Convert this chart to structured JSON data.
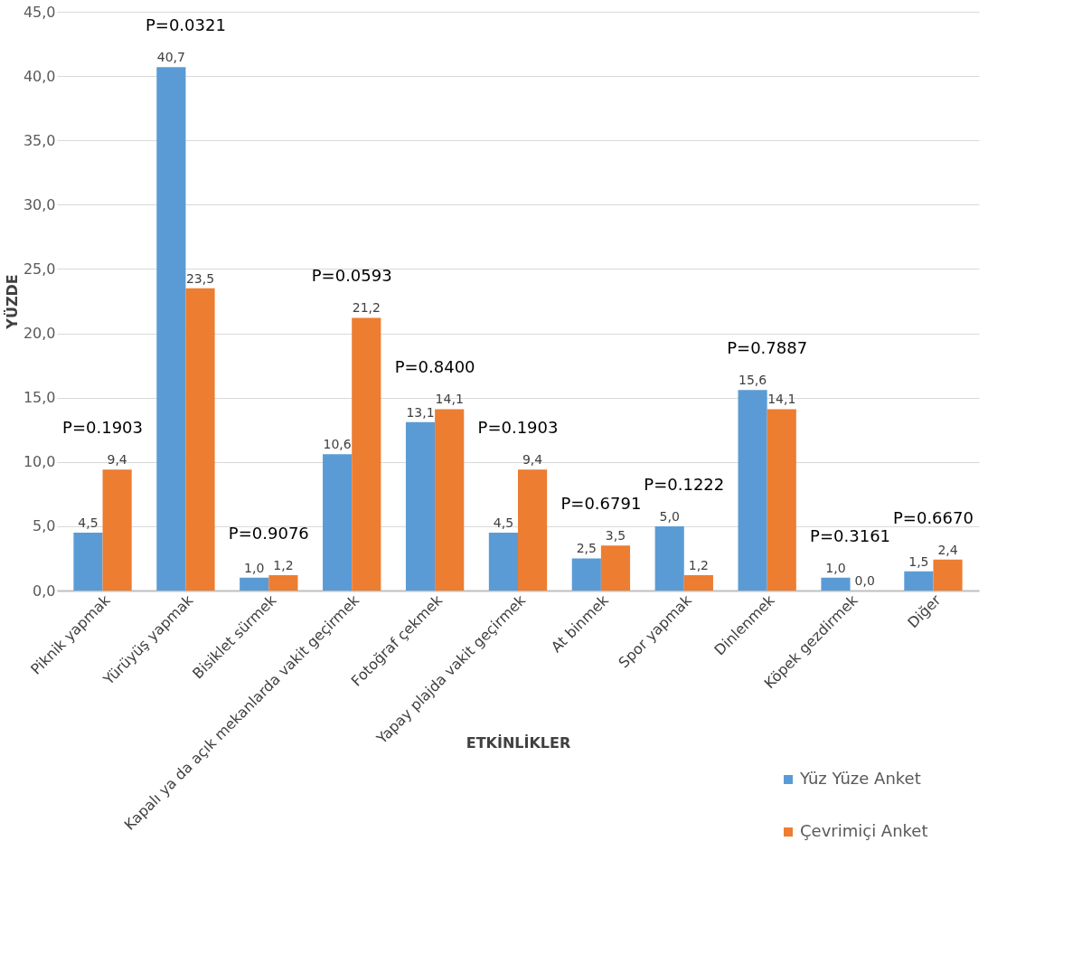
{
  "chart_data": {
    "type": "bar",
    "xlabel": "ETKİNLİKLER",
    "ylabel": "YÜZDE",
    "categories": [
      "Piknik yapmak",
      "Yürüyüş yapmak",
      "Bisiklet sürmek",
      "Kapalı ya da açık mekanlarda vakit geçirmek",
      "Fotoğraf çekmek",
      "Yapay plajda vakit geçirmek",
      "At binmek",
      "Spor yapmak",
      "Dinlenmek",
      "Köpek gezdirmek",
      "Diğer"
    ],
    "series": [
      {
        "name": "Yüz Yüze Anket",
        "color": "#5b9bd5",
        "values": [
          4.5,
          40.7,
          1.0,
          10.6,
          13.1,
          4.5,
          2.5,
          5.0,
          15.6,
          1.0,
          1.5
        ],
        "value_labels": [
          "4,5",
          "40,7",
          "1,0",
          "10,6",
          "13,1",
          "4,5",
          "2,5",
          "5,0",
          "15,6",
          "1,0",
          "1,5"
        ]
      },
      {
        "name": "Çevrimiçi Anket",
        "color": "#ed7d31",
        "values": [
          9.4,
          23.5,
          1.2,
          21.2,
          14.1,
          9.4,
          3.5,
          1.2,
          14.1,
          0.0,
          2.4
        ],
        "value_labels": [
          "9,4",
          "23,5",
          "1,2",
          "21,2",
          "14,1",
          "9,4",
          "3,5",
          "1,2",
          "14,1",
          "0,0",
          "2,4"
        ]
      }
    ],
    "ylim": [
      0,
      45
    ],
    "yticks": [
      {
        "value": 0,
        "label": "0,0"
      },
      {
        "value": 5,
        "label": "5,0"
      },
      {
        "value": 10,
        "label": "10,0"
      },
      {
        "value": 15,
        "label": "15,0"
      },
      {
        "value": 20,
        "label": "20,0"
      },
      {
        "value": 25,
        "label": "25,0"
      },
      {
        "value": 30,
        "label": "30,0"
      },
      {
        "value": 35,
        "label": "35,0"
      },
      {
        "value": 40,
        "label": "40,0"
      },
      {
        "value": 45,
        "label": "45,0"
      }
    ],
    "grid": "y",
    "legend": "bottom right",
    "annotations": [
      "P=0.1903",
      "P=0.0321",
      "P=0.9076",
      "P=0.0593",
      "P=0.8400",
      "P=0.1903",
      "P=0.6791",
      "P=0.1222",
      "P=0.7887",
      "P=0.3161",
      "P=0.6670"
    ]
  }
}
